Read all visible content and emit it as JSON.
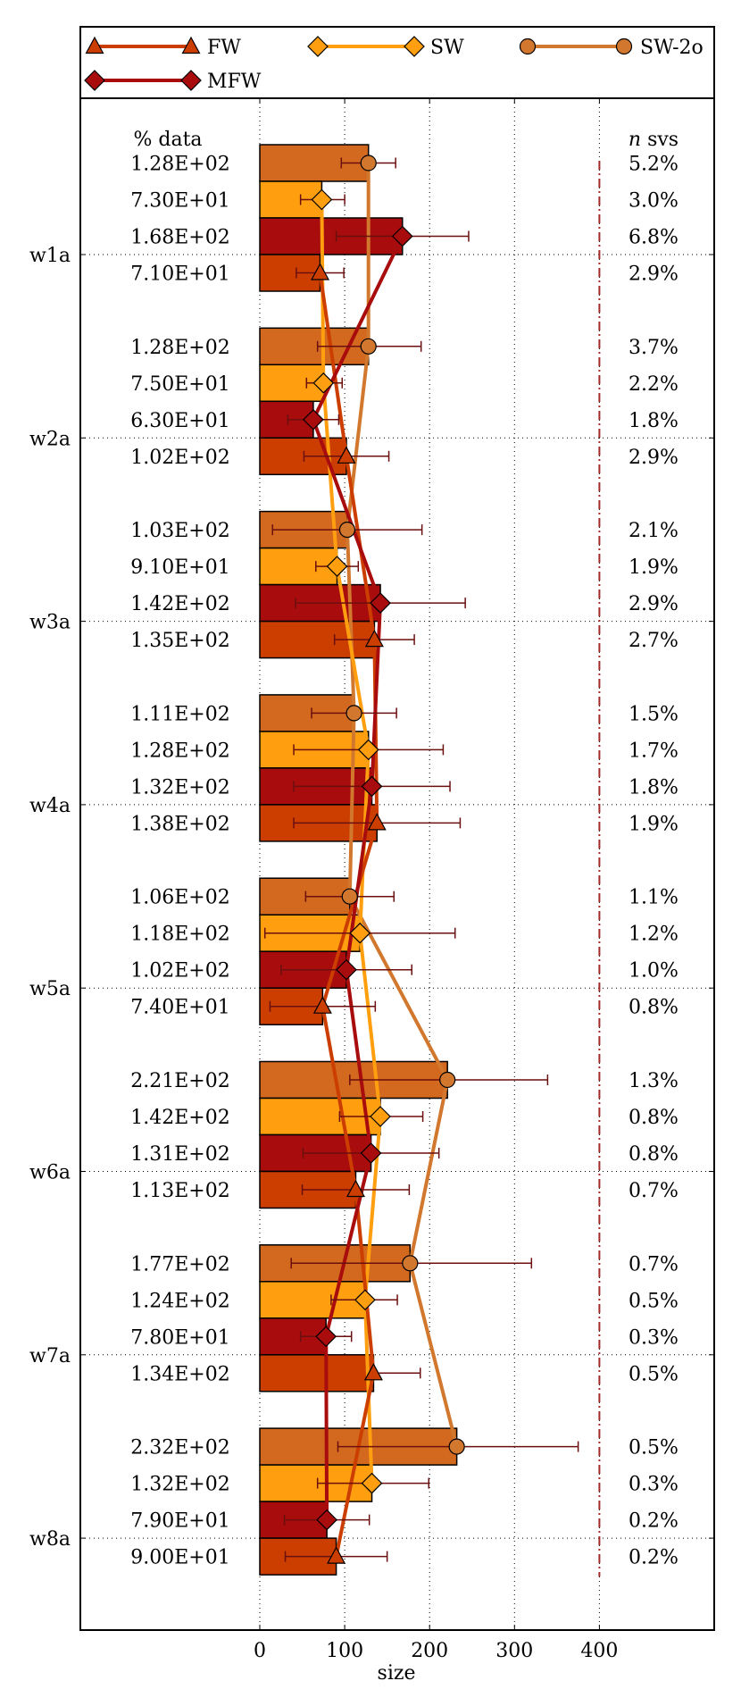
{
  "chart_data": {
    "type": "bar",
    "orientation": "horizontal",
    "categories": [
      "w1a",
      "w2a",
      "w3a",
      "w4a",
      "w5a",
      "w6a",
      "w7a",
      "w8a"
    ],
    "xlabel": "size",
    "ylabel": "",
    "xlim": [
      -200,
      550
    ],
    "xticks": [
      0,
      100,
      200,
      300,
      400
    ],
    "ref_line": 400,
    "grid": "dotted",
    "legend_position": "top",
    "left_column_header": "% data",
    "right_column_header_italic": "n",
    "right_column_header_rest": " svs",
    "colors": {
      "SW-2o": "#D2691E",
      "SW": "#FF9F0F",
      "MFW": "#A80C0C",
      "FW": "#CC3E00",
      "error": "#6B0F0F",
      "ref_line": "#A52A2A"
    },
    "series": [
      {
        "name": "SW-2o",
        "marker": "circle",
        "line_color": "#D2782E",
        "values": [
          128,
          128,
          103,
          111,
          106,
          221,
          177,
          232
        ],
        "labels": [
          "1.28E+02",
          "1.28E+02",
          "1.03E+02",
          "1.11E+02",
          "1.06E+02",
          "2.21E+02",
          "1.77E+02",
          "2.32E+02"
        ],
        "err_low": [
          32,
          60,
          88,
          50,
          52,
          115,
          140,
          140
        ],
        "err_high": [
          32,
          62,
          88,
          50,
          52,
          118,
          143,
          143
        ],
        "pct_svs": [
          "5.2%",
          "3.7%",
          "2.1%",
          "1.5%",
          "1.1%",
          "1.3%",
          "0.7%",
          "0.5%"
        ]
      },
      {
        "name": "SW",
        "marker": "diamond",
        "line_color": "#FF9F0F",
        "values": [
          73,
          75,
          91,
          128,
          118,
          142,
          124,
          132
        ],
        "labels": [
          "7.30E+01",
          "7.50E+01",
          "9.10E+01",
          "1.28E+02",
          "1.18E+02",
          "1.42E+02",
          "1.24E+02",
          "1.32E+02"
        ],
        "err_low": [
          25,
          20,
          25,
          88,
          112,
          48,
          40,
          64
        ],
        "err_high": [
          27,
          22,
          25,
          88,
          112,
          50,
          38,
          67
        ],
        "pct_svs": [
          "3.0%",
          "2.2%",
          "1.9%",
          "1.7%",
          "1.2%",
          "0.8%",
          "0.5%",
          "0.3%"
        ]
      },
      {
        "name": "MFW",
        "marker": "diamond",
        "line_color": "#A80C0C",
        "values": [
          168,
          63,
          142,
          132,
          102,
          131,
          78,
          79
        ],
        "labels": [
          "1.68E+02",
          "6.30E+01",
          "1.42E+02",
          "1.32E+02",
          "1.02E+02",
          "1.31E+02",
          "7.80E+01",
          "7.90E+01"
        ],
        "err_low": [
          78,
          30,
          100,
          92,
          77,
          80,
          30,
          50
        ],
        "err_high": [
          78,
          30,
          100,
          92,
          77,
          80,
          30,
          50
        ],
        "pct_svs": [
          "6.8%",
          "1.8%",
          "2.9%",
          "1.8%",
          "1.0%",
          "0.8%",
          "0.3%",
          "0.2%"
        ]
      },
      {
        "name": "FW",
        "marker": "triangle",
        "line_color": "#CC3E00",
        "values": [
          71,
          102,
          135,
          138,
          74,
          113,
          134,
          90
        ],
        "labels": [
          "7.10E+01",
          "1.02E+02",
          "1.35E+02",
          "1.38E+02",
          "7.40E+01",
          "1.13E+02",
          "1.34E+02",
          "9.00E+01"
        ],
        "err_low": [
          28,
          50,
          47,
          98,
          62,
          63,
          0,
          60
        ],
        "err_high": [
          28,
          50,
          47,
          98,
          62,
          63,
          55,
          60
        ],
        "pct_svs": [
          "2.9%",
          "2.9%",
          "2.7%",
          "1.9%",
          "0.8%",
          "0.7%",
          "0.5%",
          "0.2%"
        ]
      }
    ],
    "legend": [
      {
        "name": "FW",
        "marker": "triangle",
        "color": "#CC3E00"
      },
      {
        "name": "SW",
        "marker": "diamond",
        "color": "#FF9F0F"
      },
      {
        "name": "SW-2o",
        "marker": "circle",
        "color": "#D2782E"
      },
      {
        "name": "MFW",
        "marker": "diamond",
        "color": "#A80C0C"
      }
    ]
  }
}
